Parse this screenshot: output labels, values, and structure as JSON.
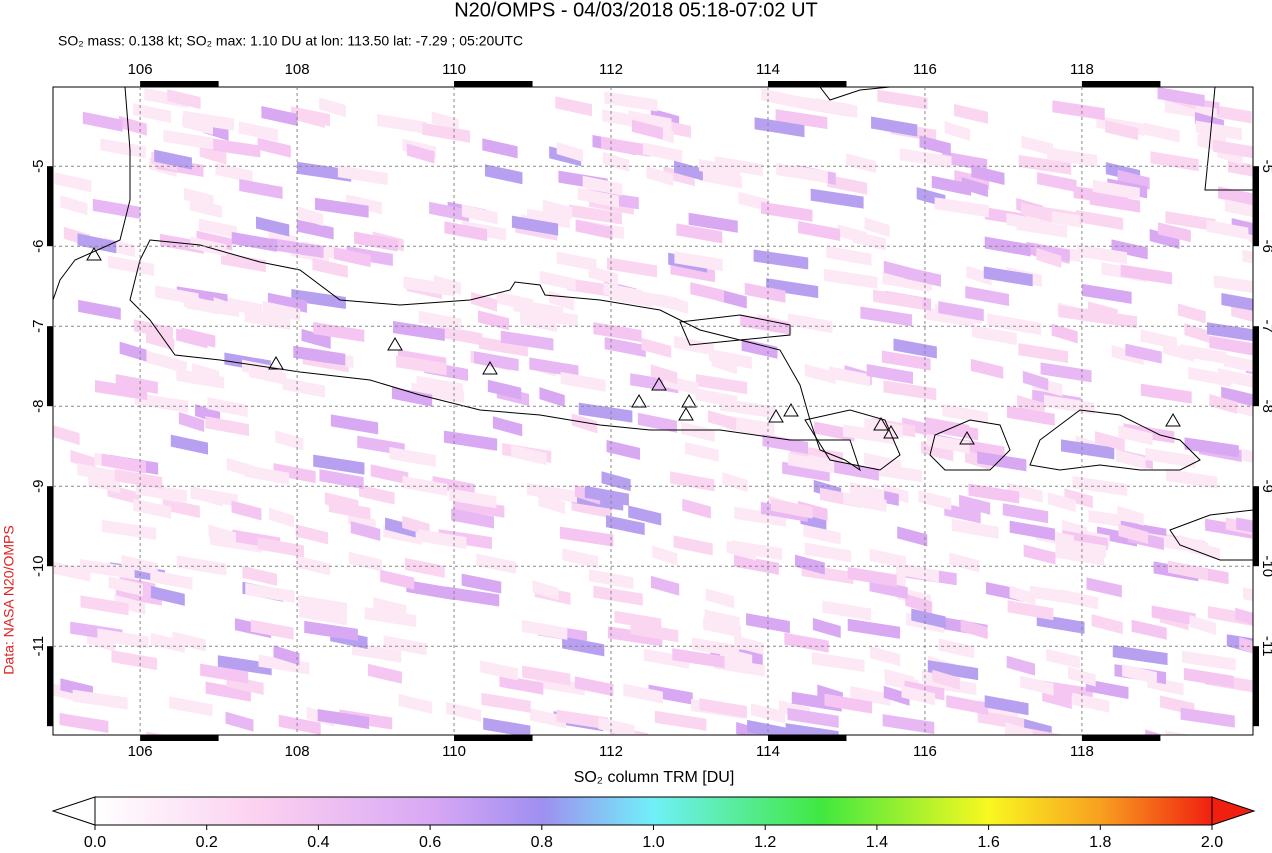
{
  "header": {
    "title": "N20/OMPS - 04/03/2018 05:18-07:02 UT",
    "subtitle": "SO₂ mass: 0.138 kt; SO₂ max: 1.10 DU at lon: 113.50 lat: -7.29 ; 05:20UTC",
    "side_label": "Data: NASA N20/OMPS"
  },
  "map": {
    "xlim": [
      104.89,
      120.18
    ],
    "ylim": [
      -12.11,
      -4.01
    ],
    "xticks": [
      106,
      108,
      110,
      112,
      114,
      116,
      118
    ],
    "yticks": [
      -5,
      -6,
      -7,
      -8,
      -9,
      -10,
      -11
    ],
    "grid": true
  },
  "colorbar": {
    "label": "SO₂ column TRM [DU]",
    "lim": [
      0,
      2
    ],
    "ticks": [
      {
        "value": 0,
        "label": "0.0"
      },
      {
        "value": 0.2,
        "label": "0.2"
      },
      {
        "value": 0.4,
        "label": "0.4"
      },
      {
        "value": 0.6,
        "label": "0.6"
      },
      {
        "value": 0.8,
        "label": "0.8"
      },
      {
        "value": 1,
        "label": "1.0"
      },
      {
        "value": 1.2,
        "label": "1.2"
      },
      {
        "value": 1.4,
        "label": "1.4"
      },
      {
        "value": 1.6,
        "label": "1.6"
      },
      {
        "value": 1.8,
        "label": "1.8"
      },
      {
        "value": 2,
        "label": "2.0"
      }
    ]
  }
}
